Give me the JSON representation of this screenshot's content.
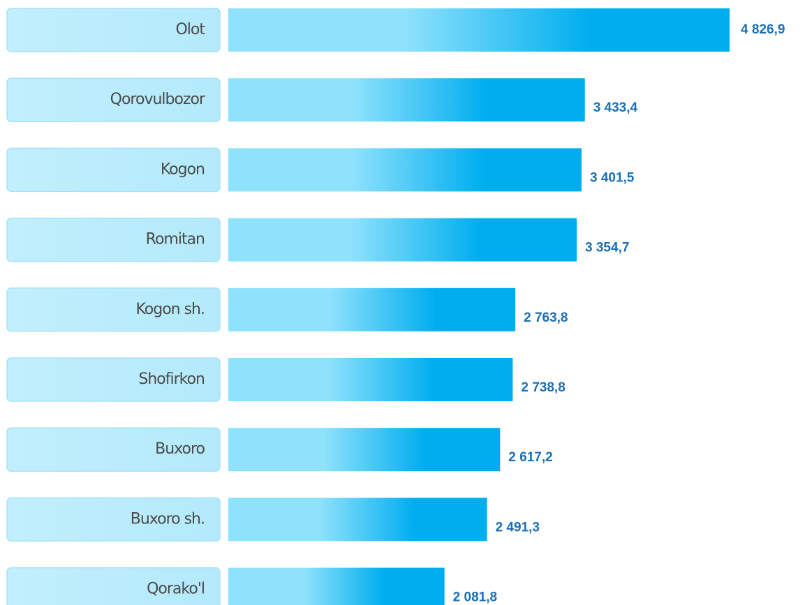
{
  "chart_data": {
    "type": "barh",
    "categories": [
      "Olot",
      "Qorovulbozor",
      "Kogon",
      "Romitan",
      "Kogon sh.",
      "Shofirkon",
      "Buxoro",
      "Buxoro sh.",
      "Qorako'l"
    ],
    "values": [
      4826.9,
      3433.4,
      3401.5,
      3354.7,
      2763.8,
      2738.8,
      2617.2,
      2491.3,
      2081.8
    ],
    "value_labels": [
      "4 826,9",
      "3 433,4",
      "3 401,5",
      "3 354,7",
      "2 763,8",
      "2 738,8",
      "2 617,2",
      "2 491,3",
      "2 081,8"
    ],
    "color": "#00aeef"
  }
}
